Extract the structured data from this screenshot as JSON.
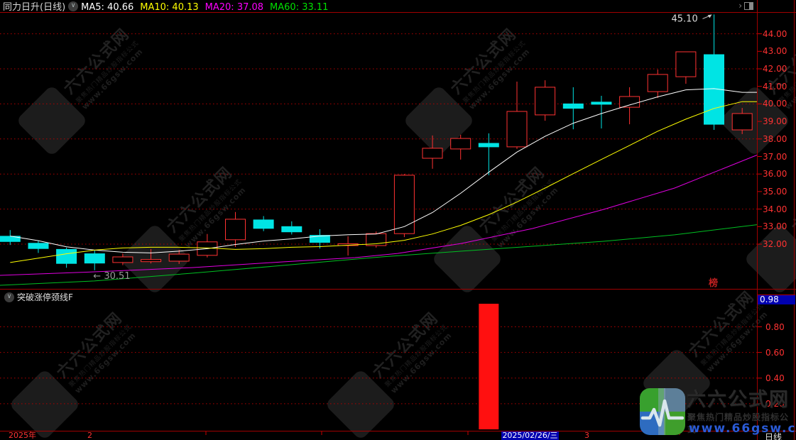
{
  "header": {
    "title": "同力日升(日线)",
    "ma_labels": [
      {
        "text": "MA5: 40.66",
        "color": "#ffffff"
      },
      {
        "text": "MA10: 40.13",
        "color": "#ffff00"
      },
      {
        "text": "MA20: 37.08",
        "color": "#ff00ff"
      },
      {
        "text": "MA60: 33.11",
        "color": "#00e000"
      }
    ]
  },
  "indicator_panel": {
    "label": "突破涨停颈线F",
    "latest_value": "0.98"
  },
  "timeline": {
    "year": "2025年",
    "month_feb": "2",
    "selected_date": "2025/02/26/三",
    "month_mar": "3",
    "period": "日线"
  },
  "logo": {
    "title": "六六公式网",
    "subtitle": "聚焦热门精品炒股指标公式",
    "url": "www.66gsw.com"
  },
  "watermark": {
    "brand": "六六公式网",
    "tagline": "聚焦热门精品炒股指标公式",
    "url": "www.66gsw.com"
  },
  "colors": {
    "up": "#ff3232",
    "down": "#00e4e4",
    "grid": "#b30000",
    "axis_text": "#ff3232",
    "highlight_box": "#0000b0"
  },
  "chart_data": {
    "type": "candlestick",
    "title": "同力日升(日线)",
    "panels": [
      {
        "name": "price",
        "ylim": [
          30.2,
          45.4
        ],
        "grid_prices": [
          44,
          42,
          40,
          38,
          36,
          34,
          32
        ],
        "axis_tick_labels": [
          "44.00",
          "43.00",
          "42.00",
          "41.00",
          "40.00",
          "39.00",
          "38.00",
          "37.00",
          "36.00",
          "35.00",
          "34.00",
          "33.00",
          "32.00"
        ],
        "candles": [
          {
            "o": 32.45,
            "h": 32.8,
            "l": 31.95,
            "c": 32.15,
            "dir": "down"
          },
          {
            "o": 32.05,
            "h": 32.2,
            "l": 31.5,
            "c": 31.75,
            "dir": "down"
          },
          {
            "o": 31.7,
            "h": 31.8,
            "l": 30.65,
            "c": 30.9,
            "dir": "down"
          },
          {
            "o": 31.45,
            "h": 31.65,
            "l": 30.51,
            "c": 30.92,
            "dir": "down"
          },
          {
            "o": 30.95,
            "h": 31.47,
            "l": 30.8,
            "c": 31.27,
            "dir": "up"
          },
          {
            "o": 31.0,
            "h": 31.72,
            "l": 30.9,
            "c": 31.12,
            "dir": "up"
          },
          {
            "o": 31.03,
            "h": 31.67,
            "l": 30.87,
            "c": 31.43,
            "dir": "up"
          },
          {
            "o": 31.36,
            "h": 32.58,
            "l": 31.24,
            "c": 32.13,
            "dir": "up"
          },
          {
            "o": 32.25,
            "h": 33.83,
            "l": 31.84,
            "c": 33.42,
            "dir": "up"
          },
          {
            "o": 33.38,
            "h": 33.6,
            "l": 32.74,
            "c": 32.9,
            "dir": "down"
          },
          {
            "o": 33.0,
            "h": 33.3,
            "l": 32.55,
            "c": 32.7,
            "dir": "down"
          },
          {
            "o": 32.5,
            "h": 32.85,
            "l": 31.75,
            "c": 32.1,
            "dir": "down"
          },
          {
            "o": 31.92,
            "h": 32.45,
            "l": 31.35,
            "c": 32.02,
            "dir": "up"
          },
          {
            "o": 31.92,
            "h": 32.72,
            "l": 31.8,
            "c": 32.6,
            "dir": "up"
          },
          {
            "o": 32.6,
            "h": 36.0,
            "l": 32.4,
            "c": 35.93,
            "dir": "up"
          },
          {
            "o": 36.9,
            "h": 38.2,
            "l": 36.3,
            "c": 37.47,
            "dir": "up"
          },
          {
            "o": 37.43,
            "h": 38.24,
            "l": 36.82,
            "c": 38.03,
            "dir": "up"
          },
          {
            "o": 37.75,
            "h": 38.32,
            "l": 35.93,
            "c": 37.55,
            "dir": "down"
          },
          {
            "o": 37.55,
            "h": 41.27,
            "l": 37.43,
            "c": 39.57,
            "dir": "up"
          },
          {
            "o": 39.37,
            "h": 41.35,
            "l": 39.04,
            "c": 40.95,
            "dir": "up"
          },
          {
            "o": 40.0,
            "h": 40.95,
            "l": 38.55,
            "c": 39.75,
            "dir": "down"
          },
          {
            "o": 40.1,
            "h": 40.46,
            "l": 38.6,
            "c": 39.98,
            "dir": "down"
          },
          {
            "o": 39.81,
            "h": 40.95,
            "l": 38.84,
            "c": 40.42,
            "dir": "up"
          },
          {
            "o": 40.7,
            "h": 41.96,
            "l": 40.34,
            "c": 41.68,
            "dir": "up"
          },
          {
            "o": 41.55,
            "h": 42.97,
            "l": 41.15,
            "c": 42.97,
            "dir": "up"
          },
          {
            "o": 42.81,
            "h": 45.1,
            "l": 38.52,
            "c": 38.84,
            "dir": "down"
          },
          {
            "o": 38.52,
            "h": 39.77,
            "l": 38.28,
            "c": 39.45,
            "dir": "up"
          }
        ],
        "ma_series": [
          {
            "name": "MA5",
            "color": "#ffffff",
            "values": [
              32.46,
              32.2,
              31.85,
              31.66,
              31.54,
              31.5,
              31.6,
              31.74,
              31.98,
              32.18,
              32.3,
              32.46,
              32.54,
              32.58,
              33.0,
              33.8,
              34.9,
              36.1,
              37.25,
              38.15,
              38.9,
              39.45,
              39.94,
              40.4,
              40.8,
              40.87,
              40.66
            ]
          },
          {
            "name": "MA10",
            "color": "#ffff00",
            "values": [
              30.95,
              31.2,
              31.45,
              31.66,
              31.78,
              31.82,
              31.82,
              31.78,
              31.7,
              31.74,
              31.82,
              31.86,
              31.94,
              32.02,
              32.22,
              32.58,
              33.07,
              33.68,
              34.4,
              35.2,
              36.02,
              36.83,
              37.63,
              38.44,
              39.13,
              39.74,
              40.13
            ]
          },
          {
            "name": "MA20",
            "color": "#e000e0",
            "points": [
              [
                0,
                30.22
              ],
              [
                133,
                30.42
              ],
              [
                270,
                30.66
              ],
              [
                400,
                30.99
              ],
              [
                500,
                31.23
              ],
              [
                560,
                31.47
              ],
              [
                650,
                32.04
              ],
              [
                750,
                32.89
              ],
              [
                850,
                33.98
              ],
              [
                950,
                35.2
              ],
              [
                1066,
                37.08
              ]
            ]
          },
          {
            "name": "MA60",
            "color": "#00c022",
            "points": [
              [
                0,
                29.65
              ],
              [
                133,
                29.9
              ],
              [
                270,
                30.34
              ],
              [
                400,
                30.79
              ],
              [
                537,
                31.27
              ],
              [
                650,
                31.6
              ],
              [
                750,
                31.88
              ],
              [
                850,
                32.16
              ],
              [
                950,
                32.53
              ],
              [
                1066,
                33.11
              ]
            ]
          }
        ],
        "annotations": [
          {
            "label": "45.10",
            "type": "high-marker",
            "candle_index": 25
          },
          {
            "label": "← 30.51",
            "type": "low-marker",
            "candle_index": 3
          },
          {
            "label": "榜",
            "type": "badge"
          }
        ]
      },
      {
        "name": "突破涨停颈线F",
        "ylim": [
          0,
          1.04
        ],
        "grid_values": [
          0.8,
          0.6,
          0.4,
          0.2
        ],
        "axis_tick_labels": [
          "0.80",
          "0.60",
          "0.40",
          "0.20"
        ],
        "latest_value": 0.98,
        "bars": [
          {
            "candle_index": 17,
            "value": 0.98,
            "color": "#ff1010"
          }
        ]
      }
    ]
  }
}
